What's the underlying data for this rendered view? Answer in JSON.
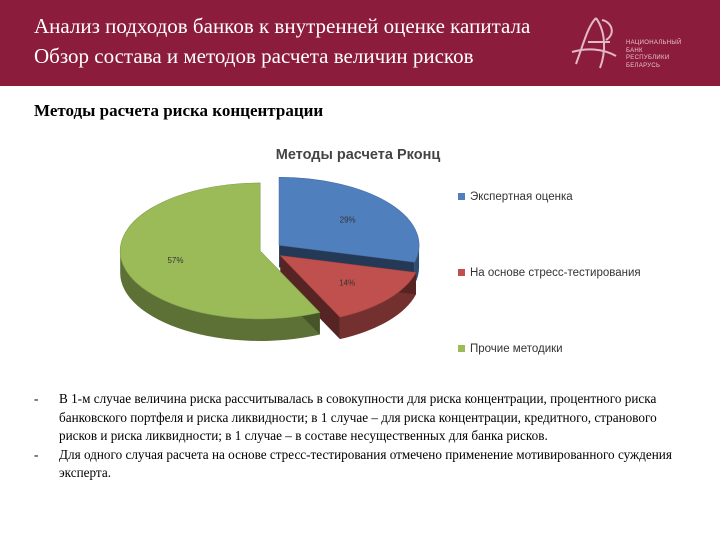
{
  "header": {
    "title_line1": "Анализ подходов банков к внутренней оценке капитала",
    "title_line2": "Обзор состава и методов расчета величин рисков",
    "logo_text": [
      "НАЦИОНАЛЬНЫЙ",
      "БАНК",
      "РЕСПУБЛИКИ",
      "БЕЛАРУСЬ"
    ]
  },
  "section_title": "Методы расчета риска концентрации",
  "chart_data": {
    "type": "pie",
    "title": "Методы расчета Рконц",
    "categories": [
      "Экспертная оценка",
      "На основе стресс-тестирования",
      "Прочие методики"
    ],
    "values": [
      29,
      14,
      57
    ],
    "data_labels": [
      "29%",
      "14%",
      "57%"
    ],
    "colors": [
      "#4f7fbd",
      "#c0504d",
      "#9bbb59"
    ],
    "legend_position": "right",
    "exploded": true,
    "style": "3d"
  },
  "notes": [
    "В 1-м случае величина риска рассчитывалась в совокупности для риска концентрации, процентного риска банковского портфеля и риска ликвидности; в 1 случае – для риска концентрации, кредитного, странового рисков и риска ликвидности; в 1 случае – в составе несущественных для банка рисков.",
    "Для одного случая расчета на основе стресс-тестирования отмечено применение мотивированного суждения эксперта."
  ],
  "notes_bullet": "-"
}
